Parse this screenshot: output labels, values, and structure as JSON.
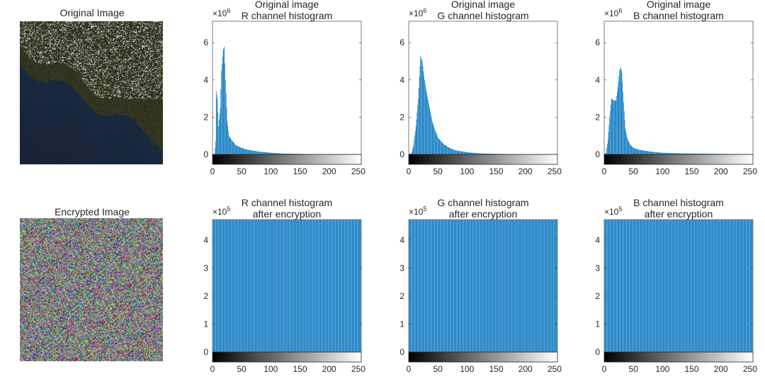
{
  "image_titles": {
    "original": "Original Image",
    "encrypted": "Encrypted Image"
  },
  "colors": {
    "bar": "#0072BD",
    "axis": "#262626"
  },
  "chart_data": [
    {
      "type": "bar",
      "title": [
        "Original image",
        "R channel histogram"
      ],
      "exponent_label": "×10",
      "exponent": "6",
      "scale": 1000000,
      "xlim": [
        0,
        255
      ],
      "ylim": [
        -0.6,
        7.15
      ],
      "xticks": [
        0,
        50,
        100,
        150,
        200,
        250
      ],
      "yticks": [
        0,
        2,
        4,
        6
      ],
      "x": [
        0,
        3,
        5,
        6,
        8,
        10,
        13,
        15,
        18,
        20,
        22,
        25,
        28,
        32,
        40,
        50,
        60,
        80,
        100,
        120,
        150,
        180,
        255
      ],
      "y": [
        0,
        0,
        0.7,
        3.4,
        3.0,
        1.5,
        2.5,
        4.5,
        5.6,
        5.8,
        4.0,
        1.8,
        1.0,
        0.8,
        0.5,
        0.35,
        0.25,
        0.15,
        0.09,
        0.05,
        0.03,
        0.01,
        0
      ]
    },
    {
      "type": "bar",
      "title": [
        "Original image",
        "G channel histogram"
      ],
      "exponent_label": "×10",
      "exponent": "6",
      "scale": 1000000,
      "xlim": [
        0,
        255
      ],
      "ylim": [
        -0.6,
        7.15
      ],
      "xticks": [
        0,
        50,
        100,
        150,
        200,
        250
      ],
      "yticks": [
        0,
        2,
        4,
        6
      ],
      "x": [
        0,
        5,
        8,
        12,
        16,
        20,
        23,
        26,
        30,
        35,
        40,
        45,
        50,
        60,
        70,
        80,
        100,
        120,
        150,
        200,
        255
      ],
      "y": [
        0,
        0.1,
        0.5,
        1.5,
        3.0,
        5.3,
        5.0,
        4.2,
        3.4,
        2.6,
        1.8,
        1.3,
        0.9,
        0.55,
        0.35,
        0.22,
        0.12,
        0.06,
        0.03,
        0.01,
        0
      ]
    },
    {
      "type": "bar",
      "title": [
        "Original image",
        "B channel histogram"
      ],
      "exponent_label": "×10",
      "exponent": "6",
      "scale": 1000000,
      "xlim": [
        0,
        255
      ],
      "ylim": [
        -0.6,
        7.15
      ],
      "xticks": [
        0,
        50,
        100,
        150,
        200,
        250
      ],
      "yticks": [
        0,
        2,
        4,
        6
      ],
      "x": [
        0,
        3,
        6,
        9,
        12,
        16,
        20,
        23,
        26,
        28,
        30,
        33,
        36,
        40,
        45,
        50,
        60,
        80,
        100,
        130,
        180,
        230,
        255
      ],
      "y": [
        0,
        0.1,
        0.8,
        2.0,
        3.0,
        2.9,
        2.9,
        3.6,
        4.5,
        4.7,
        4.4,
        2.8,
        1.4,
        0.8,
        0.5,
        0.35,
        0.25,
        0.15,
        0.09,
        0.06,
        0.04,
        0.02,
        0
      ]
    },
    {
      "type": "bar",
      "title": [
        "R channel histogram",
        "after encryption"
      ],
      "exponent_label": "×10",
      "exponent": "5",
      "scale": 100000,
      "xlim": [
        0,
        255
      ],
      "ylim": [
        -0.35,
        4.73
      ],
      "xticks": [
        0,
        50,
        100,
        150,
        200,
        250
      ],
      "yticks": [
        0,
        1,
        2,
        3,
        4
      ],
      "x": [
        0,
        255
      ],
      "y": [
        4.72,
        4.72
      ]
    },
    {
      "type": "bar",
      "title": [
        "G channel histogram",
        "after encryption"
      ],
      "exponent_label": "×10",
      "exponent": "5",
      "scale": 100000,
      "xlim": [
        0,
        255
      ],
      "ylim": [
        -0.35,
        4.73
      ],
      "xticks": [
        0,
        50,
        100,
        150,
        200,
        250
      ],
      "yticks": [
        0,
        1,
        2,
        3,
        4
      ],
      "x": [
        0,
        255
      ],
      "y": [
        4.72,
        4.72
      ]
    },
    {
      "type": "bar",
      "title": [
        "B channel histogram",
        "after encryption"
      ],
      "exponent_label": "×10",
      "exponent": "5",
      "scale": 100000,
      "xlim": [
        0,
        255
      ],
      "ylim": [
        -0.35,
        4.73
      ],
      "xticks": [
        0,
        50,
        100,
        150,
        200,
        250
      ],
      "yticks": [
        0,
        1,
        2,
        3,
        4
      ],
      "x": [
        0,
        255
      ],
      "y": [
        4.72,
        4.72
      ]
    }
  ]
}
